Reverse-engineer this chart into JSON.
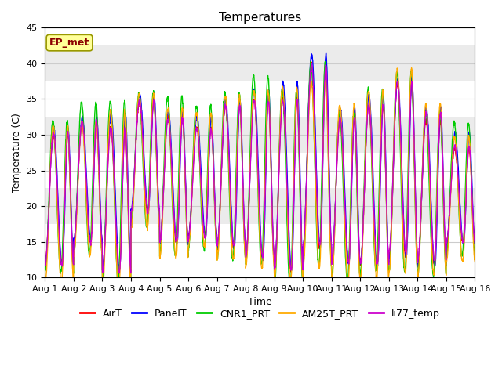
{
  "title": "Temperatures",
  "xlabel": "Time",
  "ylabel": "Temperature (C)",
  "ylim": [
    10,
    45
  ],
  "xlim": [
    0,
    15
  ],
  "series_colors": {
    "AirT": "#ff0000",
    "PanelT": "#0000ff",
    "CNR1_PRT": "#00cc00",
    "AM25T_PRT": "#ffaa00",
    "li77_temp": "#cc00cc"
  },
  "series_names": [
    "AirT",
    "PanelT",
    "CNR1_PRT",
    "AM25T_PRT",
    "li77_temp"
  ],
  "xtick_labels": [
    "Aug 1",
    "Aug 2",
    "Aug 3",
    "Aug 4",
    "Aug 5",
    "Aug 6",
    "Aug 7",
    "Aug 8",
    "Aug 9",
    "Aug 10",
    "Aug 11",
    "Aug 12",
    "Aug 13",
    "Aug 14",
    "Aug 15",
    "Aug 16"
  ],
  "ytick_labels": [
    10,
    15,
    20,
    25,
    30,
    35,
    40,
    45
  ],
  "annotation_text": "EP_met",
  "annotation_color": "#8b0000",
  "annotation_bg": "#ffff99",
  "annotation_edge": "#999900",
  "bg_band_color": "#ebebeb",
  "plot_bg_color": "#ffffff",
  "grid_color": "#cccccc",
  "title_fontsize": 11,
  "axis_fontsize": 9,
  "tick_fontsize": 8,
  "legend_fontsize": 9,
  "linewidth": 1.0
}
